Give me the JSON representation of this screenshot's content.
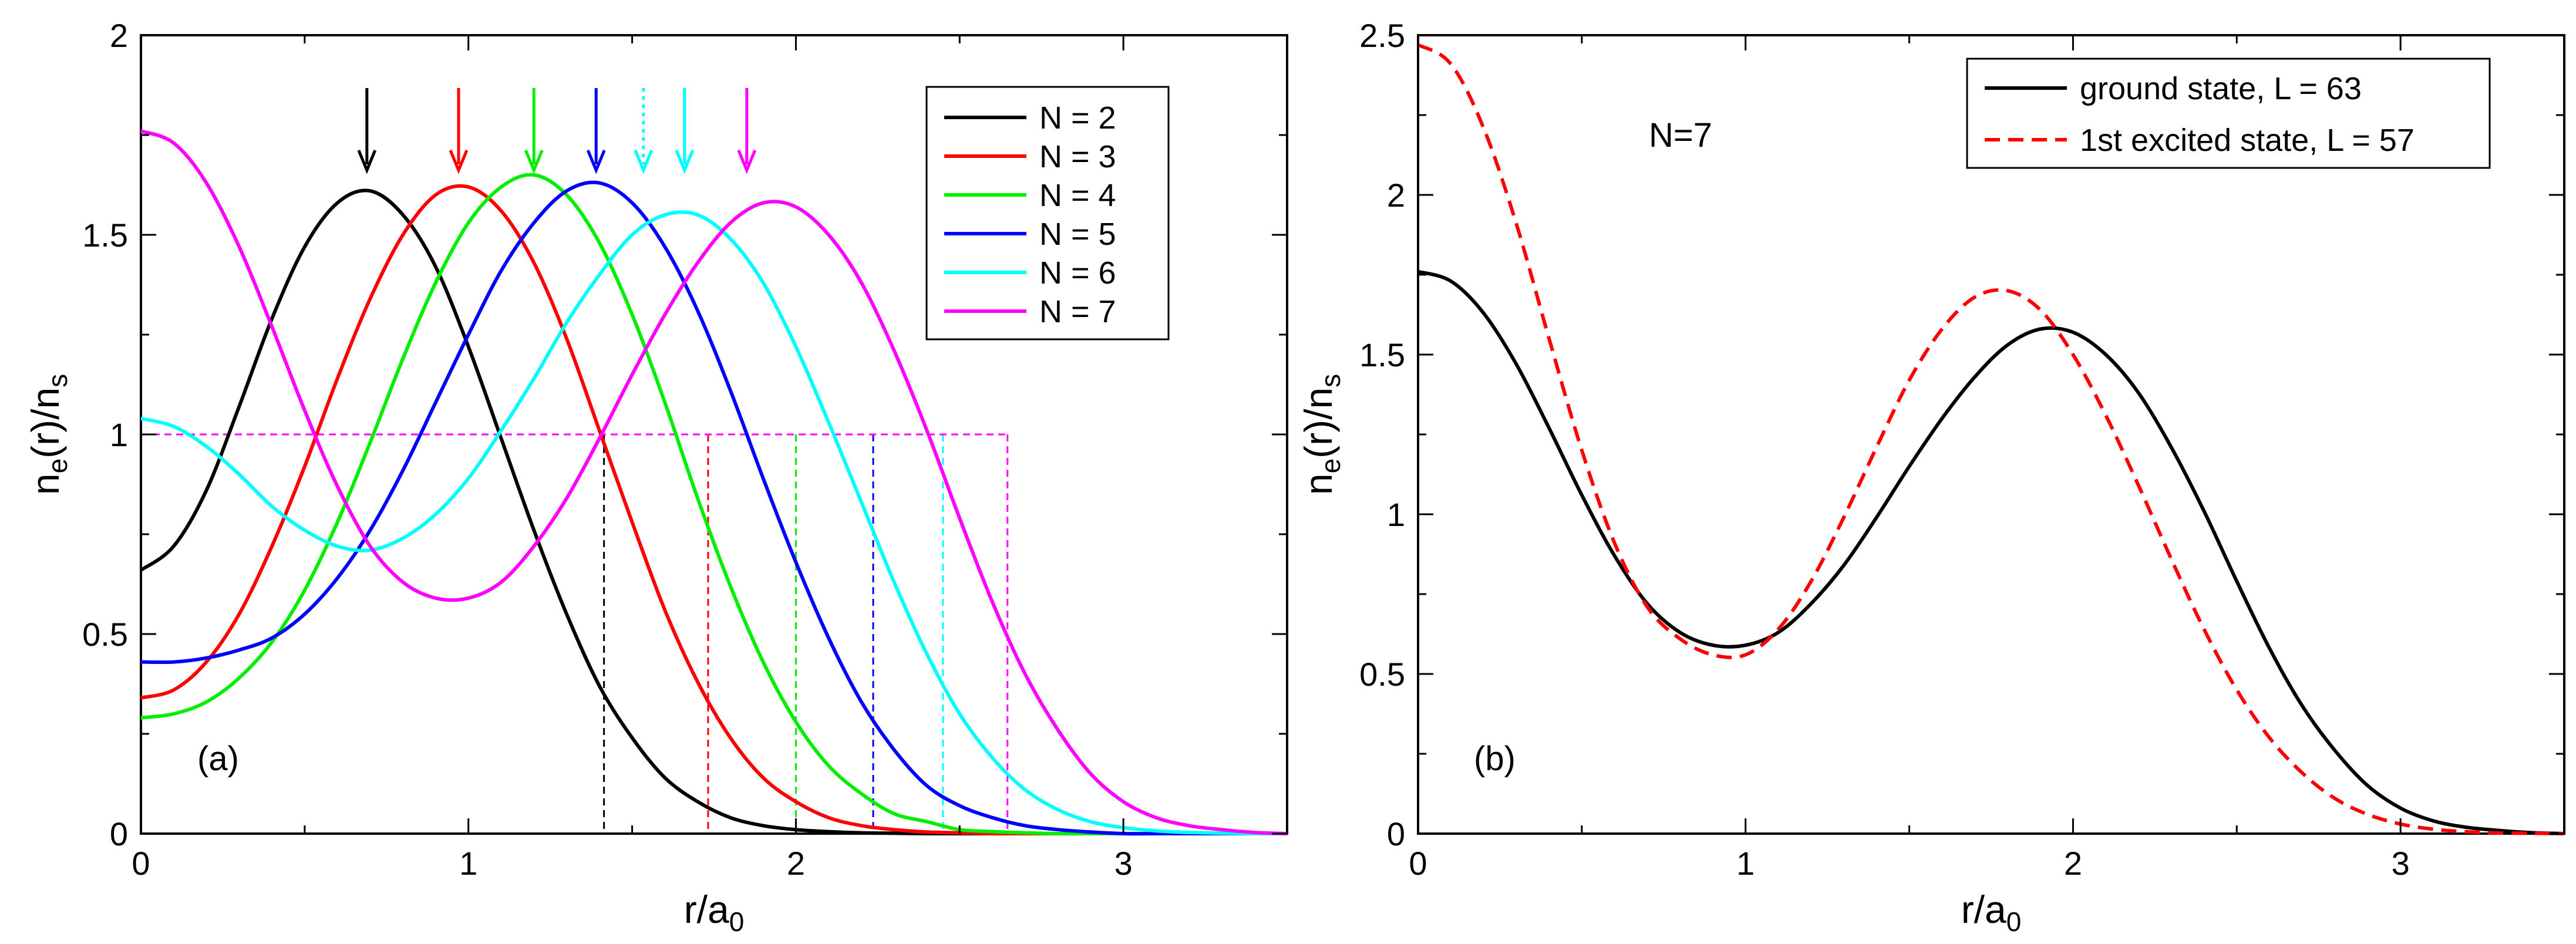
{
  "chart_data": [
    {
      "type": "line",
      "panel_label": "(a)",
      "xlabel": "r/a",
      "xlabel_sub": "0",
      "ylabel": {
        "main": "n",
        "sub1": "e",
        "mid": "(r)/n",
        "sub2": "s"
      },
      "xlim": [
        0,
        3.5
      ],
      "ylim": [
        0,
        2
      ],
      "xticks": [
        0,
        1,
        2,
        3
      ],
      "yticks": [
        0,
        0.5,
        1,
        1.5,
        2
      ],
      "ytick_labels": [
        "0",
        "0.5",
        "1",
        "1.5",
        "2"
      ],
      "legend_position": "top-right",
      "x": [
        0,
        0.1,
        0.2,
        0.3,
        0.4,
        0.5,
        0.6,
        0.7,
        0.8,
        0.9,
        1.0,
        1.1,
        1.2,
        1.3,
        1.4,
        1.5,
        1.6,
        1.7,
        1.8,
        1.9,
        2.0,
        2.1,
        2.2,
        2.3,
        2.4,
        2.5,
        2.6,
        2.7,
        2.8,
        2.9,
        3.0,
        3.1,
        3.2,
        3.3,
        3.4,
        3.5
      ],
      "series": [
        {
          "name": "N = 2",
          "color": "#000000",
          "peak_r": 0.69,
          "fermi_r": 1.414,
          "values": [
            0.66,
            0.72,
            0.86,
            1.07,
            1.29,
            1.47,
            1.58,
            1.61,
            1.55,
            1.42,
            1.22,
            0.99,
            0.76,
            0.55,
            0.37,
            0.24,
            0.14,
            0.08,
            0.04,
            0.02,
            0.01,
            0.005,
            0.002,
            0.001,
            0,
            0,
            0,
            0,
            0,
            0,
            0,
            0,
            0,
            0,
            0,
            0
          ]
        },
        {
          "name": "N = 3",
          "color": "#ff0000",
          "peak_r": 0.97,
          "fermi_r": 1.732,
          "values": [
            0.34,
            0.36,
            0.43,
            0.55,
            0.72,
            0.92,
            1.14,
            1.34,
            1.5,
            1.6,
            1.62,
            1.56,
            1.43,
            1.24,
            1.01,
            0.78,
            0.56,
            0.38,
            0.24,
            0.14,
            0.08,
            0.04,
            0.02,
            0.01,
            0.004,
            0.002,
            0,
            0,
            0,
            0,
            0,
            0,
            0,
            0,
            0,
            0
          ]
        },
        {
          "name": "N = 4",
          "color": "#00ee00",
          "peak_r": 1.2,
          "fermi_r": 2.0,
          "values": [
            0.29,
            0.3,
            0.33,
            0.39,
            0.48,
            0.61,
            0.78,
            0.98,
            1.19,
            1.38,
            1.53,
            1.62,
            1.65,
            1.6,
            1.48,
            1.3,
            1.08,
            0.84,
            0.62,
            0.43,
            0.28,
            0.17,
            0.1,
            0.05,
            0.03,
            0.01,
            0.005,
            0.002,
            0,
            0,
            0,
            0,
            0,
            0,
            0,
            0
          ]
        },
        {
          "name": "N = 5",
          "color": "#0000ff",
          "peak_r": 1.39,
          "fermi_r": 2.236,
          "values": [
            0.43,
            0.43,
            0.44,
            0.46,
            0.49,
            0.55,
            0.64,
            0.76,
            0.91,
            1.08,
            1.25,
            1.41,
            1.53,
            1.61,
            1.63,
            1.58,
            1.47,
            1.31,
            1.11,
            0.89,
            0.68,
            0.49,
            0.33,
            0.21,
            0.12,
            0.07,
            0.04,
            0.02,
            0.01,
            0.004,
            0,
            0,
            0,
            0,
            0,
            0
          ]
        },
        {
          "name": "N = 6",
          "color": "#00ffff",
          "peak_r": 1.66,
          "fermi_r": 2.449,
          "values": [
            1.04,
            1.02,
            0.97,
            0.9,
            0.82,
            0.76,
            0.72,
            0.71,
            0.74,
            0.8,
            0.89,
            1.01,
            1.14,
            1.28,
            1.4,
            1.5,
            1.55,
            1.55,
            1.49,
            1.38,
            1.22,
            1.03,
            0.83,
            0.63,
            0.45,
            0.3,
            0.19,
            0.11,
            0.06,
            0.03,
            0.015,
            0.007,
            0.003,
            0.001,
            0,
            0
          ]
        },
        {
          "name": "N = 7",
          "color": "#ff00ff",
          "peak_r": 1.85,
          "fermi_r": 2.646,
          "values": [
            1.76,
            1.73,
            1.63,
            1.47,
            1.27,
            1.06,
            0.87,
            0.72,
            0.63,
            0.59,
            0.59,
            0.63,
            0.72,
            0.84,
            0.99,
            1.15,
            1.3,
            1.43,
            1.53,
            1.58,
            1.57,
            1.5,
            1.38,
            1.21,
            1.01,
            0.79,
            0.58,
            0.4,
            0.26,
            0.15,
            0.08,
            0.04,
            0.02,
            0.01,
            0.003,
            0
          ]
        }
      ],
      "reference_level": 1
    },
    {
      "type": "line",
      "panel_label": "(b)",
      "annotation": "N=7",
      "xlabel": "r/a",
      "xlabel_sub": "0",
      "ylabel": {
        "main": "n",
        "sub1": "e",
        "mid": "(r)/n",
        "sub2": "s"
      },
      "xlim": [
        0,
        3.5
      ],
      "ylim": [
        0,
        2.5
      ],
      "xticks": [
        0,
        1,
        2,
        3
      ],
      "yticks": [
        0,
        0.5,
        1,
        1.5,
        2,
        2.5
      ],
      "ytick_labels": [
        "0",
        "0.5",
        "1",
        "1.5",
        "2",
        "2.5"
      ],
      "legend_position": "top-right",
      "x": [
        0,
        0.1,
        0.2,
        0.3,
        0.4,
        0.5,
        0.6,
        0.7,
        0.8,
        0.9,
        1.0,
        1.1,
        1.2,
        1.3,
        1.4,
        1.5,
        1.6,
        1.7,
        1.8,
        1.9,
        2.0,
        2.1,
        2.2,
        2.3,
        2.4,
        2.5,
        2.6,
        2.7,
        2.8,
        2.9,
        3.0,
        3.1,
        3.2,
        3.3,
        3.4,
        3.5
      ],
      "series": [
        {
          "name": "ground state, L = 63",
          "color": "#000000",
          "dash": "solid",
          "values": [
            1.76,
            1.73,
            1.63,
            1.47,
            1.27,
            1.06,
            0.87,
            0.72,
            0.63,
            0.59,
            0.59,
            0.63,
            0.72,
            0.84,
            0.99,
            1.15,
            1.3,
            1.43,
            1.53,
            1.58,
            1.57,
            1.5,
            1.38,
            1.21,
            1.01,
            0.79,
            0.58,
            0.4,
            0.26,
            0.15,
            0.08,
            0.04,
            0.02,
            0.01,
            0.003,
            0
          ]
        },
        {
          "name": "1st excited state, L = 57",
          "color": "#ff0000",
          "dash": "dashed",
          "values": [
            2.47,
            2.41,
            2.21,
            1.91,
            1.55,
            1.2,
            0.91,
            0.71,
            0.61,
            0.56,
            0.56,
            0.64,
            0.79,
            0.99,
            1.21,
            1.42,
            1.58,
            1.68,
            1.7,
            1.64,
            1.5,
            1.31,
            1.09,
            0.86,
            0.64,
            0.45,
            0.3,
            0.19,
            0.11,
            0.06,
            0.03,
            0.014,
            0.006,
            0.002,
            0.001,
            0
          ]
        }
      ]
    }
  ]
}
